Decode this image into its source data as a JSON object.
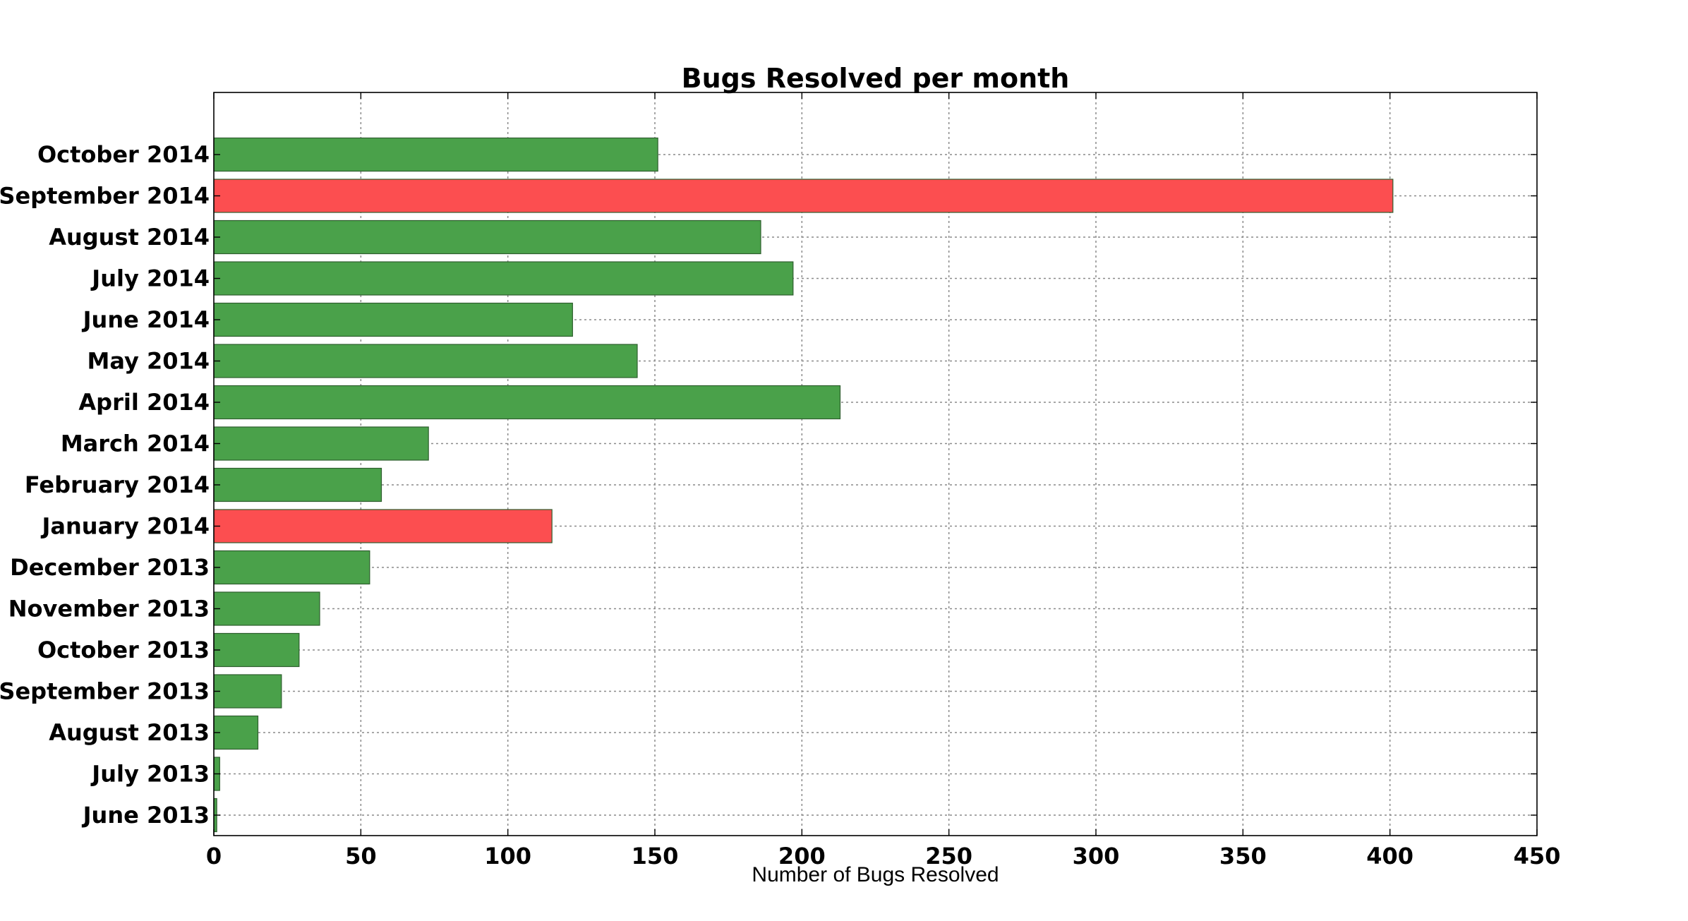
{
  "chart_data": {
    "type": "bar",
    "orientation": "horizontal",
    "title": "Bugs Resolved per month",
    "xlabel": "Number of Bugs Resolved",
    "ylabel": "",
    "xlim": [
      0,
      450
    ],
    "xticks": [
      0,
      50,
      100,
      150,
      200,
      250,
      300,
      350,
      400,
      450
    ],
    "grid": true,
    "categories": [
      "June 2013",
      "July 2013",
      "August 2013",
      "September 2013",
      "October 2013",
      "November 2013",
      "December 2013",
      "January 2014",
      "February 2014",
      "March 2014",
      "April 2014",
      "May 2014",
      "June 2014",
      "July 2014",
      "August 2014",
      "September 2014",
      "October 2014"
    ],
    "values": [
      1,
      2,
      15,
      23,
      29,
      36,
      53,
      115,
      57,
      73,
      213,
      144,
      122,
      197,
      186,
      401,
      151
    ],
    "highlighted": [
      false,
      false,
      false,
      false,
      false,
      false,
      false,
      true,
      false,
      false,
      false,
      false,
      false,
      false,
      false,
      true,
      false
    ],
    "colors": {
      "normal": "#4aa14a",
      "highlight": "#fc4e50"
    }
  }
}
